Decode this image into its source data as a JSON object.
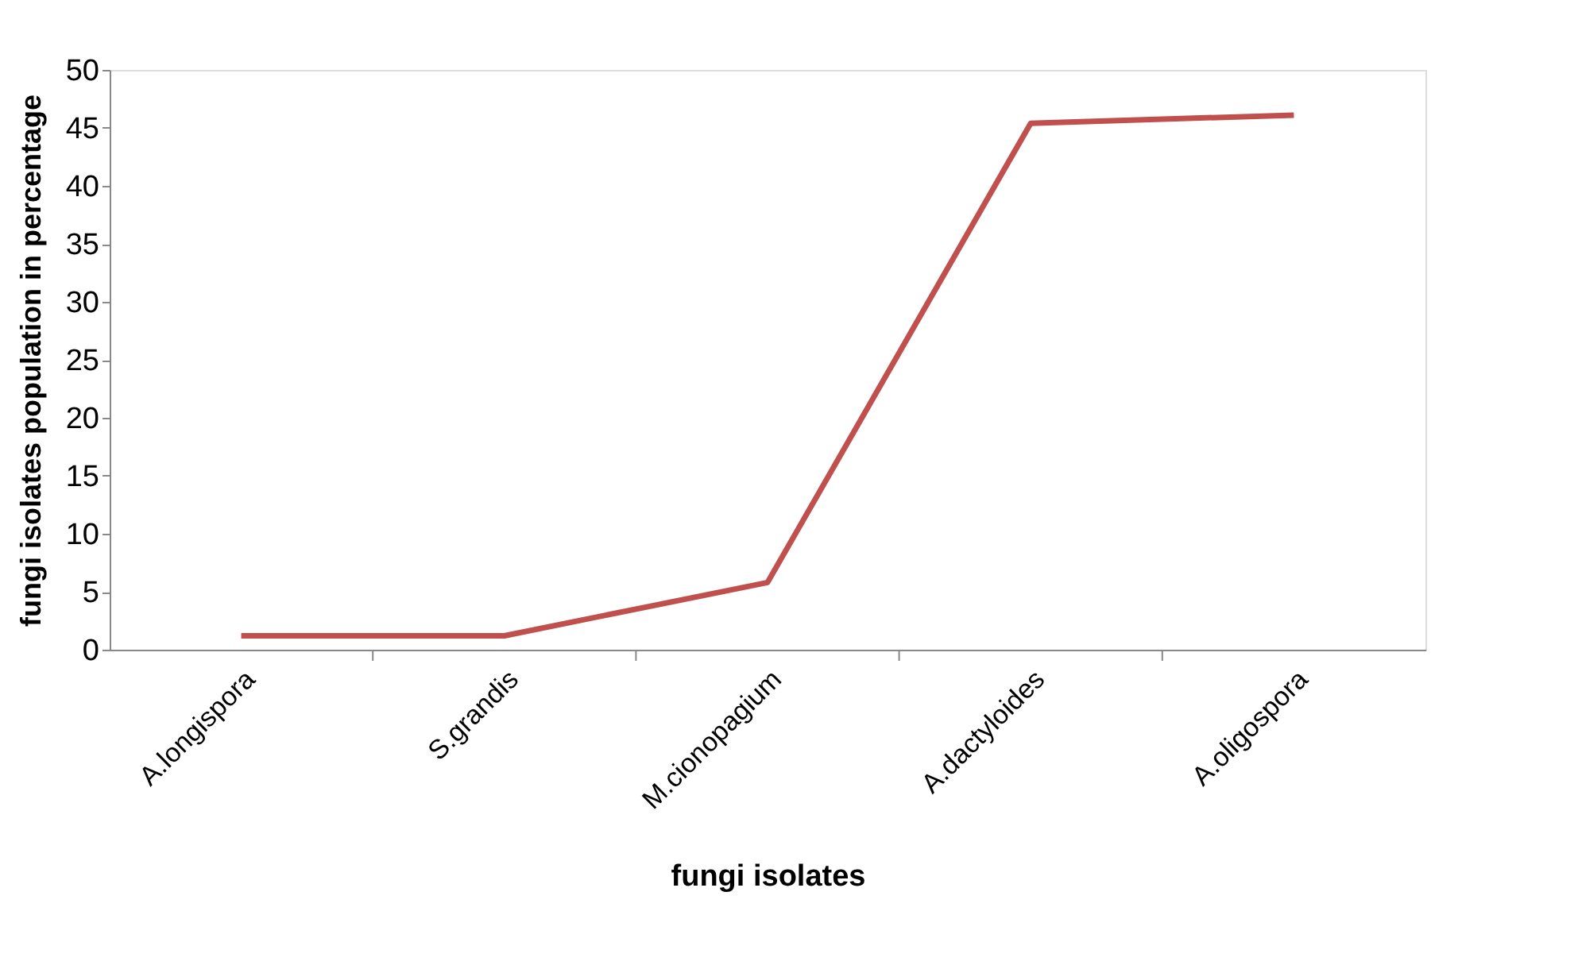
{
  "chart_data": {
    "type": "line",
    "xlabel": "fungi isolates",
    "ylabel": "fungi isolates population in percentage",
    "categories": [
      "A.longispora",
      "S.grandis",
      "M.cionopagium",
      "A.dactyloides",
      "A.oligospora"
    ],
    "series": [
      {
        "color": "#c0504d",
        "values": [
          1.2,
          1.2,
          5.8,
          45.4,
          46.1
        ]
      }
    ],
    "ylim": [
      0,
      50
    ],
    "yticks": [
      0,
      5,
      10,
      15,
      20,
      25,
      30,
      35,
      40,
      45,
      50
    ],
    "grid": false,
    "legend": false,
    "marker": "none",
    "line_style": "solid"
  }
}
